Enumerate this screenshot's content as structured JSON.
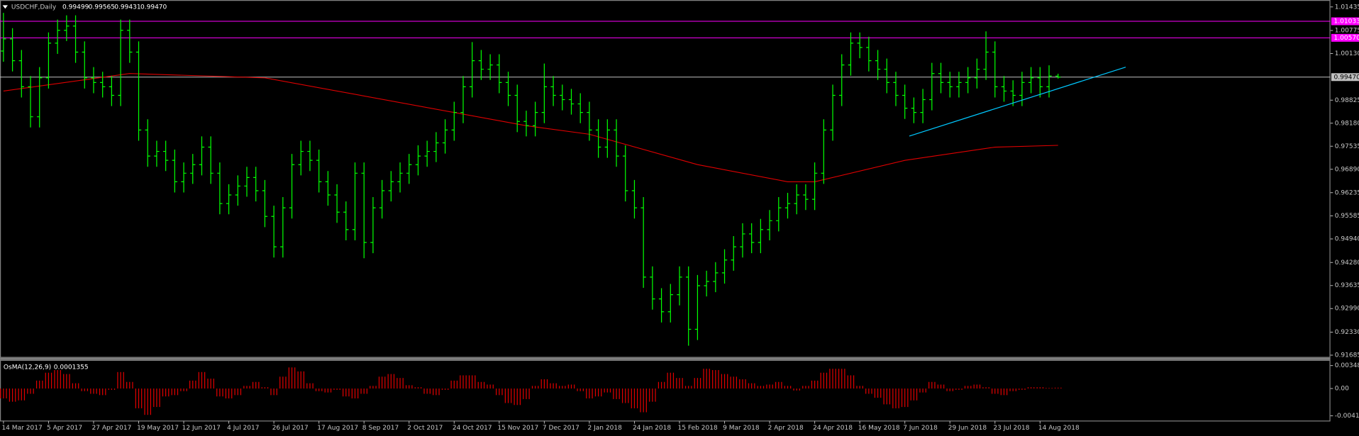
{
  "chart_data": [
    {
      "type": "ohlc",
      "title": "USDCHF,Daily",
      "header_values": [
        "0.99499",
        "0.99565",
        "0.99431",
        "0.99470"
      ],
      "categories": [
        "14 Mar 2017",
        null,
        null,
        null,
        null,
        "5 Apr 2017",
        null,
        null,
        null,
        null,
        "27 Apr 2017",
        null,
        null,
        null,
        null,
        "19 May 2017",
        null,
        null,
        null,
        null,
        "12 Jun 2017",
        null,
        null,
        null,
        null,
        "4 Jul 2017",
        null,
        null,
        null,
        null,
        "26 Jul 2017",
        null,
        null,
        null,
        null,
        "17 Aug 2017",
        null,
        null,
        null,
        null,
        "8 Sep 2017",
        null,
        null,
        null,
        null,
        "2 Oct 2017",
        null,
        null,
        null,
        null,
        "24 Oct 2017",
        null,
        null,
        null,
        null,
        "15 Nov 2017",
        null,
        null,
        null,
        null,
        "7 Dec 2017",
        null,
        null,
        null,
        null,
        "2 Jan 2018",
        null,
        null,
        null,
        null,
        "24 Jan 2018",
        null,
        null,
        null,
        null,
        "15 Feb 2018",
        null,
        null,
        null,
        null,
        "9 Mar 2018",
        null,
        null,
        null,
        null,
        "2 Apr 2018",
        null,
        null,
        null,
        null,
        "24 Apr 2018",
        null,
        null,
        null,
        null,
        "16 May 2018",
        null,
        null,
        null,
        null,
        "7 Jun 2018",
        null,
        null,
        null,
        null,
        "29 Jun 2018",
        null,
        null,
        null,
        null,
        "23 Jul 2018",
        null,
        null,
        null,
        null,
        "14 Aug 2018",
        null,
        null
      ],
      "open": [
        1.002,
        1.0054,
        0.9993,
        0.992,
        0.9836,
        0.9945,
        1.0042,
        1.0078,
        1.009,
        1.0017,
        0.9945,
        0.9932,
        0.992,
        0.9896,
        1.0078,
        1.0017,
        0.9799,
        0.9726,
        0.9739,
        0.9714,
        0.9654,
        0.9678,
        0.9702,
        0.9751,
        0.9678,
        0.9593,
        0.9617,
        0.9642,
        0.9666,
        0.9629,
        0.9557,
        0.9472,
        0.9581,
        0.9702,
        0.9739,
        0.9714,
        0.9654,
        0.9617,
        0.9569,
        0.952,
        0.9678,
        0.9484,
        0.9581,
        0.9629,
        0.9654,
        0.9678,
        0.9702,
        0.9726,
        0.9739,
        0.9763,
        0.9799,
        0.9848,
        0.992,
        0.9993,
        0.9969,
        0.9981,
        0.9932,
        0.9896,
        0.9823,
        0.9811,
        0.9848,
        0.992,
        0.9896,
        0.9884,
        0.9872,
        0.9848,
        0.9799,
        0.9751,
        0.9799,
        0.9726,
        0.9629,
        0.9581,
        0.9387,
        0.9326,
        0.929,
        0.9338,
        0.9387,
        0.9241,
        0.9363,
        0.9375,
        0.9399,
        0.9435,
        0.9472,
        0.9508,
        0.9484,
        0.952,
        0.9545,
        0.9581,
        0.9593,
        0.9617,
        0.9605,
        0.9678,
        0.9799,
        0.9896,
        0.9981,
        1.0042,
        1.003,
        0.9993,
        0.9969,
        0.9932,
        0.9896,
        0.986,
        0.9848,
        0.9884,
        0.9957,
        0.9932,
        0.992,
        0.9932,
        0.9945,
        0.9969,
        1.0017,
        0.992,
        0.9908,
        0.9896,
        0.9932,
        0.9945,
        0.992,
        0.99499
      ],
      "high": [
        1.0127,
        1.0084,
        1.0023,
        0.995,
        0.9975,
        1.0072,
        1.0108,
        1.012,
        1.012,
        1.0047,
        0.9975,
        0.9962,
        0.995,
        1.0108,
        1.0108,
        1.0047,
        0.9829,
        0.9769,
        0.9769,
        0.9744,
        0.9708,
        0.9732,
        0.9781,
        0.9781,
        0.9708,
        0.9647,
        0.9672,
        0.9696,
        0.9696,
        0.9659,
        0.9587,
        0.9611,
        0.9732,
        0.9769,
        0.9769,
        0.9744,
        0.9684,
        0.9647,
        0.9599,
        0.9708,
        0.9708,
        0.9611,
        0.9659,
        0.9684,
        0.9708,
        0.9732,
        0.9756,
        0.9769,
        0.9793,
        0.9829,
        0.9878,
        0.995,
        1.0045,
        1.0023,
        1.0011,
        1.0011,
        0.9962,
        0.9926,
        0.9853,
        0.9878,
        0.9985,
        0.995,
        0.9926,
        0.9914,
        0.9902,
        0.9878,
        0.9829,
        0.9829,
        0.9829,
        0.9756,
        0.9659,
        0.9611,
        0.9417,
        0.9356,
        0.9368,
        0.9417,
        0.9417,
        0.9393,
        0.9405,
        0.9429,
        0.9465,
        0.9502,
        0.9538,
        0.9538,
        0.955,
        0.9575,
        0.9611,
        0.9623,
        0.9647,
        0.9647,
        0.9708,
        0.9829,
        0.9926,
        1.0011,
        1.0072,
        1.0072,
        1.006,
        1.0023,
        0.9999,
        0.9962,
        0.9926,
        0.989,
        0.9914,
        0.9987,
        0.9987,
        0.9962,
        0.9962,
        0.9975,
        0.9999,
        1.0075,
        1.0047,
        0.995,
        0.9938,
        0.9962,
        0.9975,
        0.9975,
        0.998,
        0.99565
      ],
      "low": [
        0.999,
        0.9963,
        0.989,
        0.9806,
        0.9806,
        0.9915,
        1.0012,
        1.0048,
        0.9987,
        0.9915,
        0.9902,
        0.989,
        0.9866,
        0.9866,
        0.9987,
        0.9769,
        0.9696,
        0.9696,
        0.9684,
        0.9624,
        0.9624,
        0.9648,
        0.9672,
        0.9648,
        0.9563,
        0.9563,
        0.9587,
        0.9612,
        0.9599,
        0.9527,
        0.9442,
        0.9442,
        0.9551,
        0.9672,
        0.9684,
        0.9624,
        0.9587,
        0.9539,
        0.949,
        0.949,
        0.944,
        0.9454,
        0.9551,
        0.9599,
        0.9624,
        0.9648,
        0.9672,
        0.9696,
        0.9709,
        0.9733,
        0.9769,
        0.9818,
        0.989,
        0.9939,
        0.9939,
        0.9902,
        0.9866,
        0.9793,
        0.9781,
        0.9781,
        0.9818,
        0.9866,
        0.9854,
        0.9842,
        0.9818,
        0.9769,
        0.9721,
        0.9721,
        0.9696,
        0.9599,
        0.9551,
        0.9357,
        0.9296,
        0.926,
        0.926,
        0.9308,
        0.9195,
        0.9211,
        0.9333,
        0.9345,
        0.9369,
        0.9405,
        0.9442,
        0.9454,
        0.9454,
        0.949,
        0.9515,
        0.9551,
        0.9563,
        0.9575,
        0.9575,
        0.9648,
        0.9769,
        0.9866,
        0.9951,
        1.0,
        0.9963,
        0.9939,
        0.9902,
        0.9866,
        0.983,
        0.9818,
        0.9818,
        0.9854,
        0.9902,
        0.989,
        0.989,
        0.9902,
        0.9915,
        0.9939,
        0.989,
        0.9878,
        0.9866,
        0.9866,
        0.9902,
        0.989,
        0.989,
        0.99431
      ],
      "close": [
        1.0054,
        0.9993,
        0.992,
        0.9836,
        0.9945,
        1.0042,
        1.0078,
        1.009,
        1.0017,
        0.9945,
        0.9932,
        0.992,
        0.9896,
        1.0078,
        1.0017,
        0.9799,
        0.9726,
        0.9739,
        0.9714,
        0.9654,
        0.9678,
        0.9702,
        0.9751,
        0.9678,
        0.9593,
        0.9617,
        0.9642,
        0.9666,
        0.9629,
        0.9557,
        0.9472,
        0.9581,
        0.9702,
        0.9739,
        0.9714,
        0.9654,
        0.9617,
        0.9569,
        0.952,
        0.9678,
        0.9484,
        0.9581,
        0.9629,
        0.9654,
        0.9678,
        0.9702,
        0.9726,
        0.9739,
        0.9763,
        0.9799,
        0.9848,
        0.992,
        0.9993,
        0.9969,
        0.9981,
        0.9932,
        0.9896,
        0.9823,
        0.9811,
        0.9848,
        0.992,
        0.9896,
        0.9884,
        0.9872,
        0.9848,
        0.9799,
        0.9751,
        0.9799,
        0.9726,
        0.9629,
        0.9581,
        0.9387,
        0.9326,
        0.929,
        0.9338,
        0.9387,
        0.9241,
        0.9363,
        0.9375,
        0.9399,
        0.9435,
        0.9472,
        0.9508,
        0.9484,
        0.952,
        0.9545,
        0.9581,
        0.9593,
        0.9617,
        0.9605,
        0.9678,
        0.9799,
        0.9896,
        0.9981,
        1.0042,
        1.003,
        0.9993,
        0.9969,
        0.9932,
        0.9896,
        0.986,
        0.9848,
        0.9884,
        0.9957,
        0.9932,
        0.992,
        0.9932,
        0.9945,
        0.9969,
        1.0017,
        0.992,
        0.9908,
        0.9896,
        0.9932,
        0.9945,
        0.992,
        0.995,
        0.9947
      ],
      "color": "#00ff00",
      "ylim": [
        0.91685,
        1.01435
      ],
      "yticks": [
        1.01435,
        1.00775,
        {
          "value": 1.0013,
          "label": "1.00130"
        },
        0.98825,
        {
          "value": 0.9818,
          "label": "0.98180"
        },
        0.97535,
        {
          "value": 0.9689,
          "label": "0.96890"
        },
        0.96235,
        0.95585,
        {
          "value": 0.9494,
          "label": "0.94940"
        },
        {
          "value": 0.9428,
          "label": "0.94280"
        },
        0.93635,
        {
          "value": 0.9299,
          "label": "0.92990"
        },
        {
          "value": 0.9233,
          "label": "0.92330"
        },
        0.91685
      ],
      "levels": [
        {
          "value": 1.01033,
          "label": "1.01033",
          "color": "#ff00ff"
        },
        {
          "value": 1.0057,
          "label": "1.00570",
          "color": "#ff00ff"
        },
        {
          "value": 0.9947,
          "label": "0.99470",
          "color": "#c0c0c0"
        }
      ],
      "ma": {
        "color": "#e00000",
        "x": [
          0,
          14,
          29,
          58,
          65,
          77,
          87,
          90,
          100,
          110,
          117
        ],
        "values": [
          0.9908,
          0.9957,
          0.9945,
          0.9811,
          0.9787,
          0.9702,
          0.9654,
          0.9654,
          0.9714,
          0.9751,
          0.9756
        ]
      },
      "trendline": {
        "color": "#00c8ff",
        "x": [
          100.5,
          124.5
        ],
        "values": [
          0.9782,
          0.9975
        ]
      }
    },
    {
      "type": "bar",
      "title": "OsMA(12,26,9)",
      "color": "#e00000",
      "values": [
        -0.0015,
        -0.002,
        -0.0018,
        -0.0008,
        0.0012,
        0.0024,
        0.0028,
        0.0022,
        0.0008,
        -0.0004,
        -0.0008,
        -0.001,
        -0.0002,
        0.0025,
        0.001,
        -0.003,
        -0.004,
        -0.0028,
        -0.0012,
        -0.001,
        -0.0004,
        0.0012,
        0.0025,
        0.0015,
        -0.0012,
        -0.0015,
        -0.001,
        0.0004,
        0.001,
        0.0002,
        -0.001,
        0.0018,
        0.0032,
        0.0026,
        0.0008,
        -0.0004,
        -0.0006,
        -0.0002,
        -0.0012,
        -0.0015,
        -0.0008,
        0.0004,
        0.0018,
        0.0022,
        0.0016,
        0.0005,
        0.0002,
        -0.0008,
        -0.001,
        -0.0002,
        0.0012,
        0.002,
        0.002,
        0.001,
        0.0006,
        -0.001,
        -0.0022,
        -0.0025,
        -0.0016,
        0.0004,
        0.0014,
        0.0008,
        0.0004,
        0.0006,
        -0.0004,
        -0.0015,
        -0.0012,
        -0.0006,
        -0.0016,
        -0.0022,
        -0.003,
        -0.0036,
        -0.002,
        0.001,
        0.0024,
        0.0016,
        0.0004,
        0.0016,
        0.003,
        0.0028,
        0.0022,
        0.0018,
        0.0014,
        0.0008,
        0.0004,
        0.0006,
        0.001,
        0.0004,
        -0.0003,
        0.0004,
        0.0012,
        0.0024,
        0.003,
        0.003,
        0.002,
        0.0004,
        -0.0008,
        -0.0014,
        -0.0024,
        -0.003,
        -0.0028,
        -0.0018,
        -0.0006,
        0.001,
        0.0006,
        -0.0004,
        -0.0002,
        0.0004,
        0.0006,
        0.0002,
        -0.0008,
        -0.001,
        -0.0004,
        -0.0002,
        0.0002,
        0.0002,
        0.0001,
        0.0001355
      ],
      "ylim": [
        -0.00414,
        0.003482
      ],
      "yticks": [
        0.003482,
        {
          "value": 0,
          "label": "0.00"
        },
        {
          "value": -0.00414,
          "label": "-0.004140"
        }
      ]
    }
  ]
}
